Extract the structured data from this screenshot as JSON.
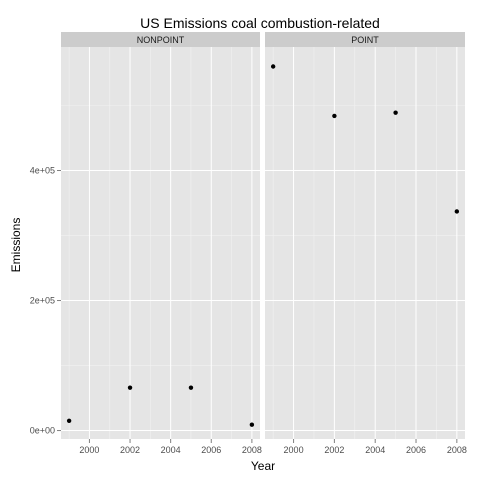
{
  "chart_data": {
    "type": "scatter",
    "title": "US Emissions coal combustion-related",
    "xlabel": "Year",
    "ylabel": "Emissions",
    "xlim": [
      1998.6,
      2008.4
    ],
    "ylim": [
      -13000,
      590000
    ],
    "x_ticks": [
      2000,
      2002,
      2004,
      2006,
      2008
    ],
    "y_ticks": [
      0,
      200000,
      400000
    ],
    "y_tick_labels": [
      "0e+00",
      "2e+05",
      "4e+05"
    ],
    "grid": true,
    "facets": [
      {
        "label": "NONPOINT",
        "points": [
          {
            "x": 1999,
            "y": 15000
          },
          {
            "x": 2002,
            "y": 66000
          },
          {
            "x": 2005,
            "y": 66000
          },
          {
            "x": 2008,
            "y": 9000
          }
        ]
      },
      {
        "label": "POINT",
        "points": [
          {
            "x": 1999,
            "y": 560000
          },
          {
            "x": 2002,
            "y": 484000
          },
          {
            "x": 2005,
            "y": 489000
          },
          {
            "x": 2008,
            "y": 337000
          }
        ]
      }
    ],
    "colors": {
      "panel_background": "#e5e5e5",
      "grid_major": "#ffffff",
      "grid_minor": "#f2f2f2",
      "strip_background": "#cccccc",
      "point": "#000000"
    }
  }
}
